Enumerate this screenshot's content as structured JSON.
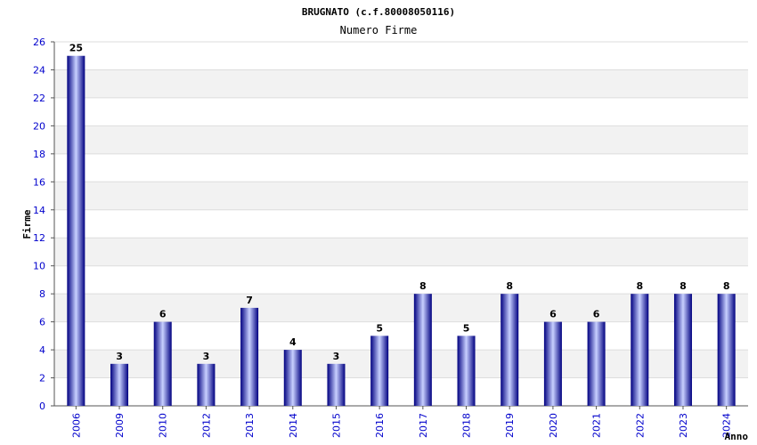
{
  "chart_data": {
    "type": "bar",
    "title": "BRUGNATO (c.f.80008050116)",
    "subtitle": "Numero Firme",
    "xlabel": "Anno",
    "ylabel": "Firme",
    "ylim": [
      0,
      26
    ],
    "ytick_step": 2,
    "grid": true,
    "categories": [
      "2006",
      "2009",
      "2010",
      "2012",
      "2013",
      "2014",
      "2015",
      "2016",
      "2017",
      "2018",
      "2019",
      "2020",
      "2021",
      "2022",
      "2023",
      "2024"
    ],
    "values": [
      25,
      3,
      6,
      3,
      7,
      4,
      3,
      5,
      8,
      5,
      8,
      6,
      6,
      8,
      8,
      8
    ],
    "colors": {
      "bar_dark": "#000080",
      "bar_light": "#c8d0ff",
      "tick_text": "#0000cc",
      "band": "#f2f2f2",
      "grid": "#dddddd"
    }
  }
}
